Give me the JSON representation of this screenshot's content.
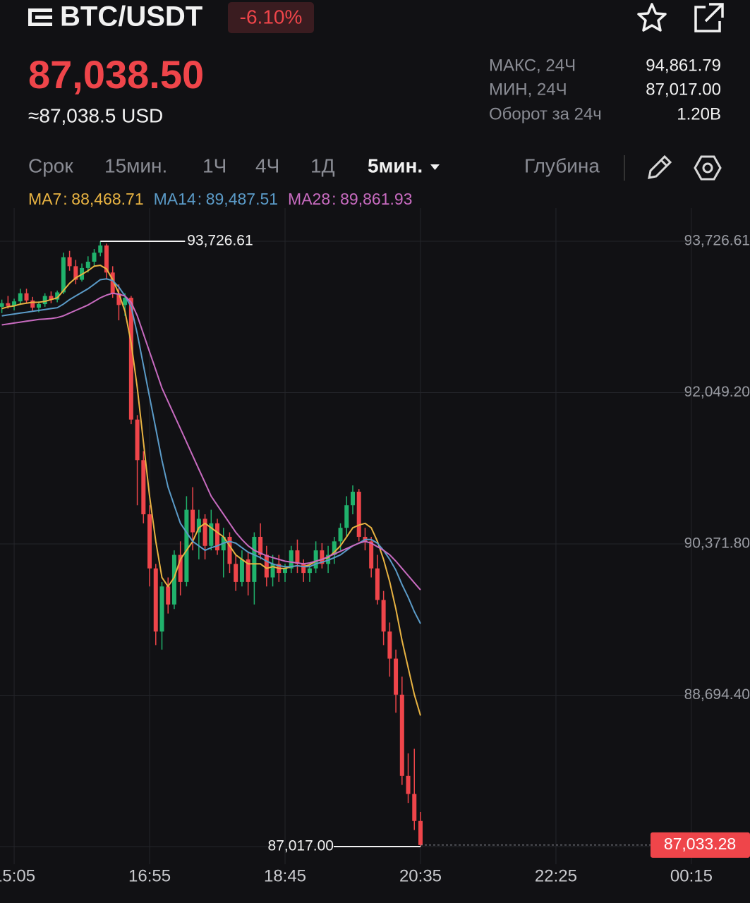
{
  "header": {
    "pair": "BTC/USDT",
    "change": "-6.10%",
    "price": "87,038.50",
    "usd": "≈87,038.5 USD"
  },
  "stats": {
    "rows": [
      [
        "МАКС, 24Ч",
        "94,861.79"
      ],
      [
        "МИН, 24Ч",
        "87,017.00"
      ],
      [
        "Оборот за 24ч",
        "1.20B"
      ]
    ]
  },
  "toolbar": {
    "label": "Срок",
    "intervals": [
      "15мин.",
      "1Ч",
      "4Ч",
      "1Д"
    ],
    "selected": "5мин.",
    "depth": "Глубина"
  },
  "chart_data": {
    "type": "candlestick",
    "up_color": "#20b26c",
    "down_color": "#ef454a",
    "x": [
      895,
      900,
      905,
      910,
      915,
      920,
      925,
      930,
      935,
      940,
      945,
      950,
      955,
      960,
      965,
      970,
      975,
      980,
      985,
      990,
      995,
      1000,
      1005,
      1010,
      1015,
      1020,
      1025,
      1030,
      1035,
      1040,
      1045,
      1050,
      1055,
      1060,
      1065,
      1070,
      1075,
      1080,
      1085,
      1090,
      1095,
      1100,
      1105,
      1110,
      1115,
      1120,
      1125,
      1130,
      1135,
      1140,
      1145,
      1150,
      1155,
      1160,
      1165,
      1170,
      1175,
      1180,
      1185,
      1190,
      1195,
      1200,
      1205,
      1210,
      1215,
      1220,
      1225,
      1230,
      1235
    ],
    "open": [
      93000,
      93040,
      93010,
      93060,
      93150,
      93070,
      92990,
      93030,
      93120,
      93080,
      93160,
      93550,
      93450,
      93300,
      93430,
      93500,
      93600,
      93680,
      93380,
      93150,
      93020,
      93100,
      91750,
      91300,
      90700,
      90100,
      89400,
      89900,
      89700,
      90250,
      89950,
      90750,
      90500,
      90650,
      90350,
      90600,
      90300,
      90450,
      90150,
      89950,
      90200,
      89950,
      90450,
      90250,
      90000,
      90150,
      90050,
      90100,
      90300,
      90150,
      90050,
      90100,
      90300,
      90150,
      90250,
      90400,
      90550,
      90800,
      90950,
      90450,
      90400,
      90100,
      89750,
      89400,
      89100,
      88700,
      87800,
      87600,
      87300
    ],
    "high": [
      93080,
      93120,
      93090,
      93200,
      93200,
      93110,
      93060,
      93150,
      93170,
      93180,
      93600,
      93620,
      93520,
      93480,
      93560,
      93640,
      93726.61,
      93700,
      93450,
      93250,
      93150,
      93120,
      91800,
      91400,
      90800,
      90150,
      89950,
      90000,
      90300,
      90400,
      90900,
      91000,
      90750,
      90700,
      90750,
      90650,
      90550,
      90500,
      90250,
      90300,
      90280,
      90500,
      90600,
      90350,
      90250,
      90250,
      90150,
      90350,
      90420,
      90200,
      90150,
      90400,
      90380,
      90350,
      90450,
      90600,
      90900,
      91020,
      90980,
      90550,
      90450,
      90250,
      89850,
      89500,
      89200,
      88900,
      88050,
      88100,
      87400
    ],
    "low": [
      92930,
      92980,
      92960,
      93020,
      93040,
      92950,
      92940,
      93000,
      93040,
      93050,
      93140,
      93400,
      93250,
      93280,
      93380,
      93440,
      93560,
      93300,
      93100,
      92850,
      92900,
      91700,
      90800,
      90600,
      89900,
      89250,
      89200,
      89600,
      89650,
      89800,
      89900,
      90300,
      90200,
      90200,
      90300,
      90250,
      90000,
      90050,
      89850,
      89900,
      89800,
      89700,
      90200,
      89900,
      89900,
      89950,
      89950,
      90050,
      90050,
      89950,
      89950,
      90050,
      90100,
      90050,
      90150,
      90300,
      90450,
      90700,
      90400,
      90300,
      90000,
      89700,
      89250,
      88900,
      88500,
      87700,
      87500,
      87200,
      87017
    ],
    "close": [
      93040,
      93010,
      93060,
      93150,
      93070,
      92990,
      93030,
      93120,
      93080,
      93160,
      93550,
      93450,
      93300,
      93430,
      93500,
      93600,
      93680,
      93380,
      93150,
      93020,
      93100,
      91750,
      91300,
      90700,
      90100,
      89400,
      89900,
      89700,
      90250,
      89950,
      90750,
      90500,
      90650,
      90350,
      90600,
      90300,
      90450,
      90150,
      89950,
      90200,
      89950,
      90450,
      90250,
      90000,
      90150,
      90050,
      90100,
      90300,
      90150,
      90050,
      90100,
      90300,
      90150,
      90250,
      90400,
      90550,
      90800,
      90950,
      90450,
      90400,
      90100,
      89750,
      89400,
      89100,
      88700,
      87800,
      87600,
      87300,
      87033.28
    ],
    "series": [
      {
        "name": "MA7",
        "color": "#e8b342",
        "last_label": "88,468.71",
        "values": [
          92980,
          93000,
          93010,
          93030,
          93040,
          93050,
          93050,
          93060,
          93080,
          93100,
          93180,
          93260,
          93320,
          93360,
          93400,
          93450,
          93460,
          93420,
          93300,
          93150,
          92950,
          92600,
          92100,
          91500,
          90900,
          90400,
          90000,
          89900,
          90000,
          90200,
          90300,
          90400,
          90550,
          90600,
          90550,
          90500,
          90450,
          90350,
          90250,
          90200,
          90150,
          90150,
          90150,
          90100,
          90120,
          90100,
          90100,
          90120,
          90130,
          90120,
          90140,
          90180,
          90200,
          90220,
          90280,
          90350,
          90450,
          90550,
          90580,
          90600,
          90550,
          90400,
          90200,
          89950,
          89650,
          89300,
          89000,
          88700,
          88468.71
        ]
      },
      {
        "name": "MA14",
        "color": "#5b9bc8",
        "last_label": "89,487.51",
        "values": [
          92900,
          92910,
          92920,
          92930,
          92940,
          92950,
          92960,
          92970,
          92980,
          92990,
          93030,
          93080,
          93120,
          93160,
          93200,
          93250,
          93300,
          93310,
          93290,
          93220,
          93120,
          93000,
          92700,
          92350,
          92000,
          91650,
          91300,
          91000,
          90800,
          90600,
          90500,
          90400,
          90350,
          90300,
          90330,
          90350,
          90380,
          90400,
          90380,
          90330,
          90280,
          90250,
          90220,
          90180,
          90150,
          90130,
          90120,
          90120,
          90130,
          90120,
          90120,
          90150,
          90170,
          90190,
          90220,
          90250,
          90300,
          90350,
          90380,
          90420,
          90420,
          90380,
          90300,
          90200,
          90080,
          89920,
          89780,
          89620,
          89487.51
        ]
      },
      {
        "name": "MA28",
        "color": "#c86bc0",
        "last_label": "89,861.93",
        "values": [
          92800,
          92810,
          92820,
          92830,
          92840,
          92850,
          92860,
          92865,
          92870,
          92880,
          92900,
          92930,
          92960,
          92990,
          93020,
          93060,
          93100,
          93130,
          93150,
          93140,
          93120,
          93050,
          92900,
          92700,
          92500,
          92300,
          92100,
          91950,
          91800,
          91650,
          91500,
          91350,
          91200,
          91050,
          90900,
          90800,
          90700,
          90600,
          90500,
          90420,
          90350,
          90300,
          90270,
          90240,
          90220,
          90200,
          90180,
          90170,
          90160,
          90150,
          90160,
          90180,
          90200,
          90230,
          90260,
          90290,
          90320,
          90350,
          90380,
          90400,
          90380,
          90340,
          90300,
          90250,
          90180,
          90100,
          90020,
          89940,
          89861.93
        ]
      }
    ],
    "xlim": [
      893.5,
      1502.6
    ],
    "ylim": [
      86821,
      94094
    ],
    "xticks": [
      {
        "value": 905,
        "label": "15:05"
      },
      {
        "value": 1015,
        "label": "16:55"
      },
      {
        "value": 1125,
        "label": "18:45"
      },
      {
        "value": 1235,
        "label": "20:35"
      },
      {
        "value": 1345,
        "label": "22:25"
      },
      {
        "value": 1455,
        "label": "00:15"
      }
    ],
    "yticks": [
      {
        "value": 93726.61,
        "label": "93,726.61"
      },
      {
        "value": 92049.2,
        "label": "92,049.20"
      },
      {
        "value": 90371.8,
        "label": "90,371.80"
      },
      {
        "value": 88694.4,
        "label": "88,694.40"
      },
      {
        "value": 87017,
        "label": "87,017.00"
      }
    ],
    "grid": true,
    "high_marker": {
      "value": 93726.61,
      "label": "93,726.61"
    },
    "low_marker": {
      "value": 87017,
      "label": "87,017.00"
    },
    "last_price": {
      "value": 87033.28,
      "label": "87,033.28"
    }
  }
}
